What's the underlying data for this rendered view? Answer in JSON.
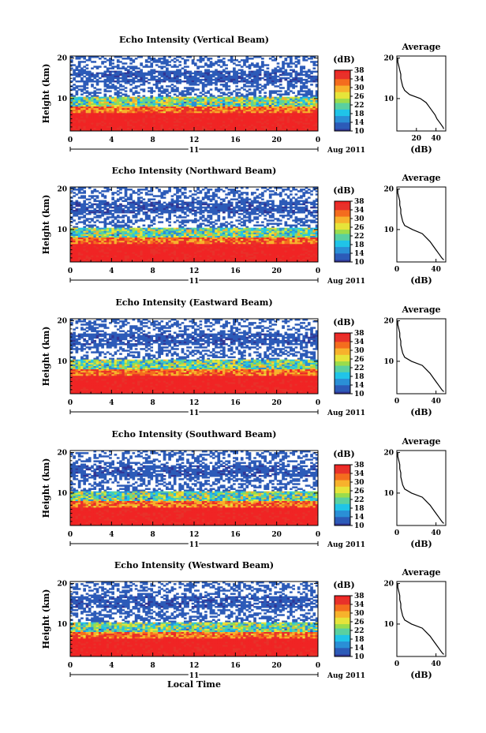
{
  "chart_data": [
    {
      "type": "heatmap",
      "title": "Echo Intensity (Vertical Beam)",
      "xlabel": "",
      "ylabel": "Height (km)",
      "x_ticks": [
        "0",
        "4",
        "8",
        "12",
        "16",
        "20",
        "0"
      ],
      "y_ticks": [
        "10",
        "20"
      ],
      "xlim": [
        0,
        24
      ],
      "ylim": [
        2,
        20.5
      ],
      "date_label": "Aug 2011",
      "date_bar_label": "11",
      "colorbar": {
        "label": "(dB)",
        "ticks": [
          "10",
          "14",
          "18",
          "22",
          "26",
          "30",
          "34",
          "38"
        ],
        "range": [
          10,
          38
        ]
      },
      "average": {
        "title": "Average",
        "xlabel": "(dB)",
        "x_ticks": [
          "20",
          "40"
        ],
        "xlim": [
          0,
          50
        ],
        "ylim": [
          2,
          20.5
        ],
        "height": [
          2.5,
          3,
          4,
          5,
          6,
          7,
          8,
          9,
          10,
          11,
          12,
          13,
          14,
          15,
          16,
          17,
          18,
          19,
          20
        ],
        "db": [
          48,
          47,
          44,
          41,
          39,
          36,
          33,
          30,
          24,
          13,
          8,
          6,
          5,
          4,
          4,
          3,
          2,
          1,
          1
        ]
      }
    },
    {
      "type": "heatmap",
      "title": "Echo Intensity (Northward Beam)",
      "xlabel": "",
      "ylabel": "Height (km)",
      "x_ticks": [
        "0",
        "4",
        "8",
        "12",
        "16",
        "20",
        "0"
      ],
      "y_ticks": [
        "10",
        "20"
      ],
      "xlim": [
        0,
        24
      ],
      "ylim": [
        2,
        20.5
      ],
      "date_label": "Aug 2011",
      "date_bar_label": "11",
      "colorbar": {
        "label": "(dB)",
        "ticks": [
          "10",
          "14",
          "18",
          "22",
          "26",
          "30",
          "34",
          "38"
        ],
        "range": [
          10,
          38
        ]
      },
      "average": {
        "title": "Average",
        "xlabel": "(dB)",
        "x_ticks": [
          "0",
          "40"
        ],
        "xlim": [
          0,
          50
        ],
        "ylim": [
          2,
          20.5
        ],
        "height": [
          2.5,
          3,
          4,
          5,
          6,
          7,
          8,
          9,
          10,
          11,
          12,
          13,
          14,
          15,
          16,
          17,
          18,
          19,
          20
        ],
        "db": [
          48,
          46,
          43,
          40,
          37,
          34,
          30,
          26,
          16,
          8,
          6,
          5,
          4,
          4,
          3,
          3,
          2,
          1,
          1
        ]
      }
    },
    {
      "type": "heatmap",
      "title": "Echo Intensity (Eastward Beam)",
      "xlabel": "",
      "ylabel": "Height (km)",
      "x_ticks": [
        "0",
        "4",
        "8",
        "12",
        "16",
        "20",
        "0"
      ],
      "y_ticks": [
        "10",
        "20"
      ],
      "xlim": [
        0,
        24
      ],
      "ylim": [
        2,
        20.5
      ],
      "date_label": "Aug 2011",
      "date_bar_label": "11",
      "colorbar": {
        "label": "(dB)",
        "ticks": [
          "10",
          "14",
          "18",
          "22",
          "26",
          "30",
          "34",
          "38"
        ],
        "range": [
          10,
          38
        ]
      },
      "average": {
        "title": "Average",
        "xlabel": "(dB)",
        "x_ticks": [
          "0",
          "40"
        ],
        "xlim": [
          0,
          50
        ],
        "ylim": [
          2,
          20.5
        ],
        "height": [
          2.5,
          3,
          4,
          5,
          6,
          7,
          8,
          9,
          10,
          11,
          12,
          13,
          14,
          15,
          16,
          17,
          18,
          19,
          20
        ],
        "db": [
          48,
          46,
          43,
          40,
          37,
          34,
          30,
          26,
          15,
          8,
          6,
          5,
          4,
          4,
          3,
          3,
          2,
          1,
          1
        ]
      }
    },
    {
      "type": "heatmap",
      "title": "Echo Intensity (Southward Beam)",
      "xlabel": "",
      "ylabel": "Height (km)",
      "x_ticks": [
        "0",
        "4",
        "8",
        "12",
        "16",
        "20",
        "0"
      ],
      "y_ticks": [
        "10",
        "20"
      ],
      "xlim": [
        0,
        24
      ],
      "ylim": [
        2,
        20.5
      ],
      "date_label": "Aug 2011",
      "date_bar_label": "11",
      "colorbar": {
        "label": "(dB)",
        "ticks": [
          "10",
          "14",
          "18",
          "22",
          "26",
          "30",
          "34",
          "38"
        ],
        "range": [
          10,
          38
        ]
      },
      "average": {
        "title": "Average",
        "xlabel": "(dB)",
        "x_ticks": [
          "0",
          "40"
        ],
        "xlim": [
          0,
          50
        ],
        "ylim": [
          2,
          20.5
        ],
        "height": [
          2.5,
          3,
          4,
          5,
          6,
          7,
          8,
          9,
          10,
          11,
          12,
          13,
          14,
          15,
          16,
          17,
          18,
          19,
          20
        ],
        "db": [
          48,
          46,
          43,
          40,
          37,
          34,
          30,
          26,
          15,
          8,
          6,
          5,
          4,
          4,
          3,
          3,
          2,
          1,
          1
        ]
      }
    },
    {
      "type": "heatmap",
      "title": "Echo Intensity (Westward Beam)",
      "xlabel": "Local Time",
      "ylabel": "Height (km)",
      "x_ticks": [
        "0",
        "4",
        "8",
        "12",
        "16",
        "20",
        "0"
      ],
      "y_ticks": [
        "10",
        "20"
      ],
      "xlim": [
        0,
        24
      ],
      "ylim": [
        2,
        20.5
      ],
      "date_label": "Aug 2011",
      "date_bar_label": "11",
      "colorbar": {
        "label": "(dB)",
        "ticks": [
          "10",
          "14",
          "18",
          "22",
          "26",
          "30",
          "34",
          "38"
        ],
        "range": [
          10,
          38
        ]
      },
      "average": {
        "title": "Average",
        "xlabel": "(dB)",
        "x_ticks": [
          "0",
          "40"
        ],
        "xlim": [
          0,
          50
        ],
        "ylim": [
          2,
          20.5
        ],
        "height": [
          2.5,
          3,
          4,
          5,
          6,
          7,
          8,
          9,
          10,
          11,
          12,
          13,
          14,
          15,
          16,
          17,
          18,
          19,
          20
        ],
        "db": [
          48,
          46,
          43,
          40,
          37,
          34,
          30,
          26,
          15,
          8,
          6,
          5,
          4,
          4,
          3,
          3,
          2,
          1,
          1
        ]
      }
    }
  ]
}
